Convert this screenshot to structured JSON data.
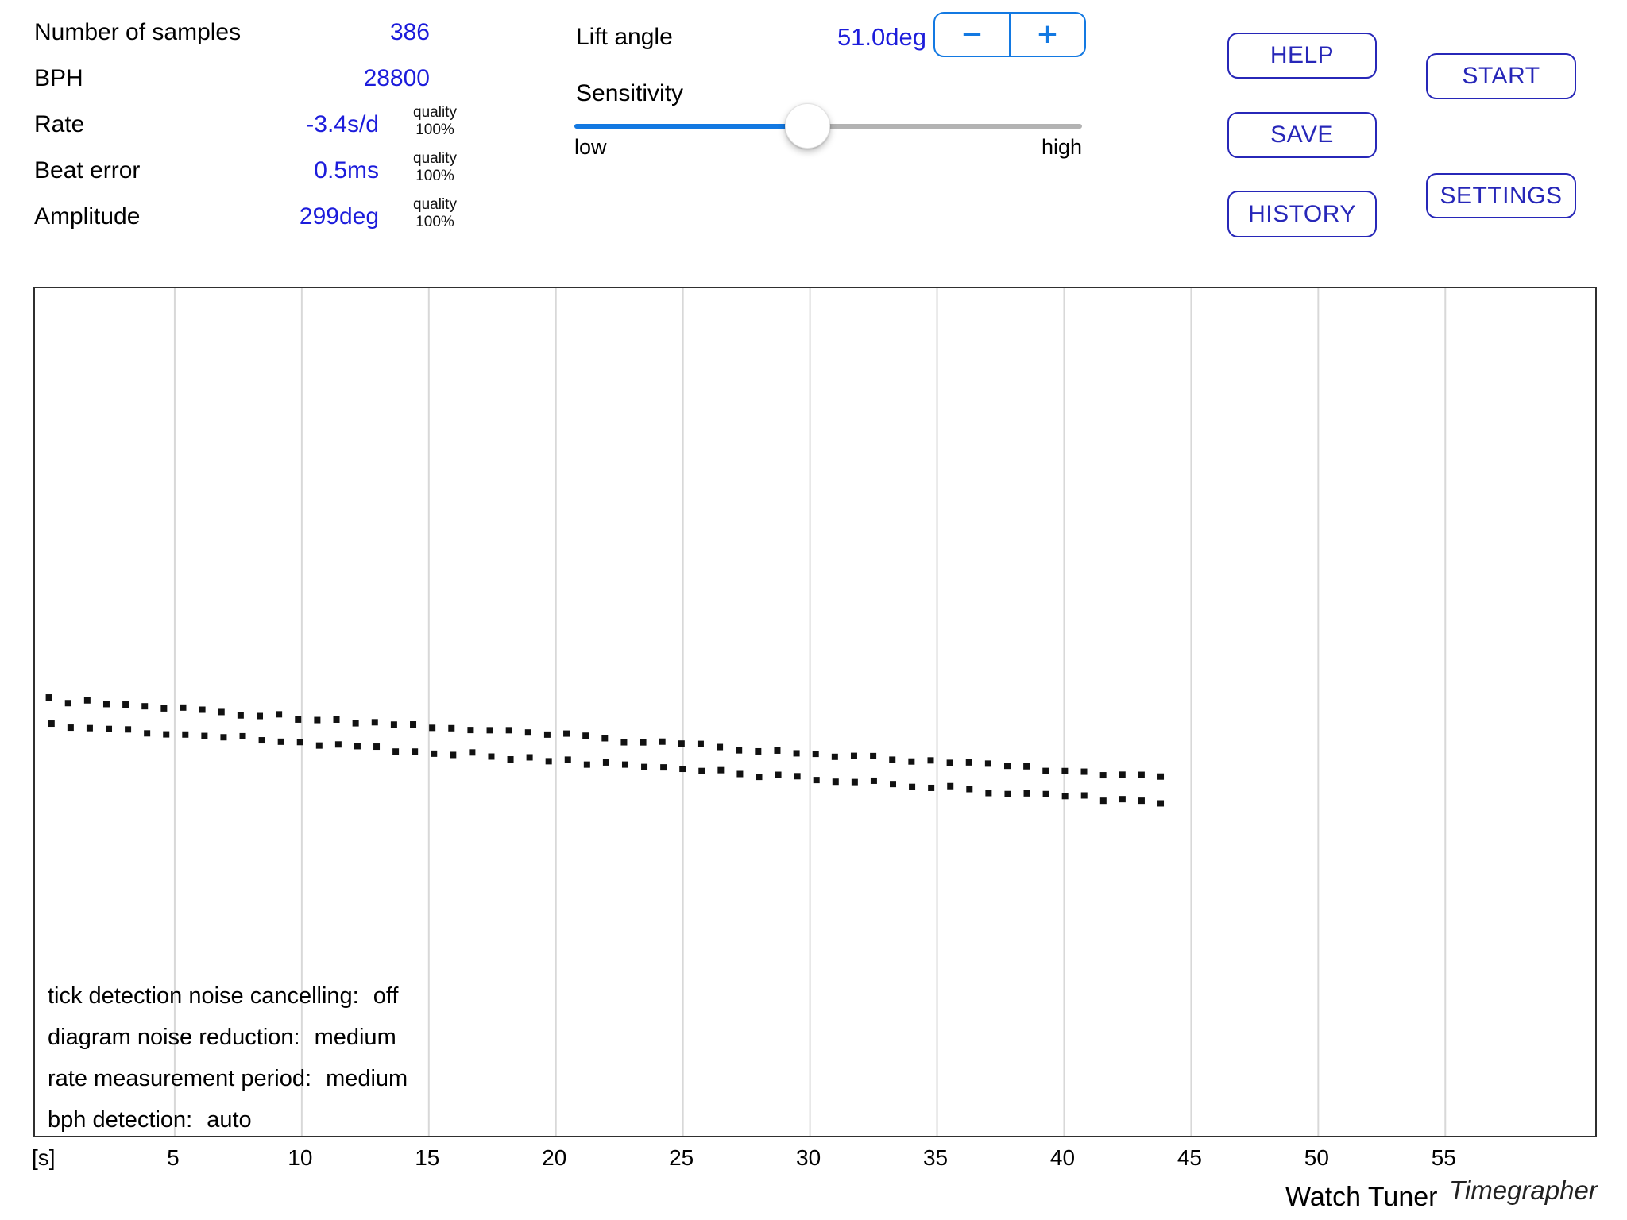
{
  "app": {
    "name": "Watch Tuner",
    "brand_suffix": "Timegrapher"
  },
  "stats": {
    "rows": [
      {
        "label": "Number of samples",
        "value": "386"
      },
      {
        "label": "BPH",
        "value": "28800"
      },
      {
        "label": "Rate",
        "value": "-3.4s/d",
        "quality_label": "quality",
        "quality_value": "100%"
      },
      {
        "label": "Beat error",
        "value": "0.5ms",
        "quality_label": "quality",
        "quality_value": "100%"
      },
      {
        "label": "Amplitude",
        "value": "299deg",
        "quality_label": "quality",
        "quality_value": "100%"
      }
    ]
  },
  "controls": {
    "lift_angle": {
      "label": "Lift angle",
      "value": "51.0deg",
      "decrement_glyph": "−",
      "increment_glyph": "+"
    },
    "sensitivity": {
      "label": "Sensitivity",
      "min_label": "low",
      "max_label": "high",
      "value_percent": 46
    }
  },
  "buttons": {
    "help": "HELP",
    "save": "SAVE",
    "history": "HISTORY",
    "start": "START",
    "settings": "SETTINGS"
  },
  "colors": {
    "value_blue": "#1c1cdb",
    "button_blue": "#2727b8",
    "accent_blue": "#1379e2",
    "slider_track_gray": "#b3b3b3",
    "grid_gray": "#d8d8d8",
    "chart_border": "#2f2f2f",
    "trace_black": "#111111"
  },
  "chart_data": {
    "type": "scatter",
    "title": "timegrapher beat trace (dotted, two lines offset by beat error)",
    "xlabel": "[s]",
    "x_unit_label": "[s]",
    "ylabel": "",
    "x_range_s": [
      -0.5,
      60.9
    ],
    "x_ticks_s": [
      5,
      10,
      15,
      20,
      25,
      30,
      35,
      40,
      45,
      50,
      55
    ],
    "x_tick_labels": [
      "5",
      "10",
      "15",
      "20",
      "25",
      "30",
      "35",
      "40",
      "45",
      "50",
      "55"
    ],
    "grid": "vertical-only",
    "legend": "none",
    "series": [
      {
        "name": "beat trace upper",
        "x_start_s": 0.05,
        "x_end_s": 43.8,
        "y_start_frac": 0.4855,
        "y_end_frac": 0.5772
      },
      {
        "name": "beat trace lower",
        "x_start_s": 0.15,
        "x_end_s": 43.8,
        "y_start_frac": 0.5154,
        "y_end_frac": 0.6071
      }
    ],
    "dot_spacing_s": 0.75,
    "dot_size_px": 8,
    "annotations": [
      {
        "name": "tick detection noise cancelling:",
        "value": "off"
      },
      {
        "name": "diagram noise reduction:",
        "value": "medium"
      },
      {
        "name": "rate measurement period:",
        "value": "medium"
      },
      {
        "name": "bph detection:",
        "value": "auto"
      }
    ]
  }
}
